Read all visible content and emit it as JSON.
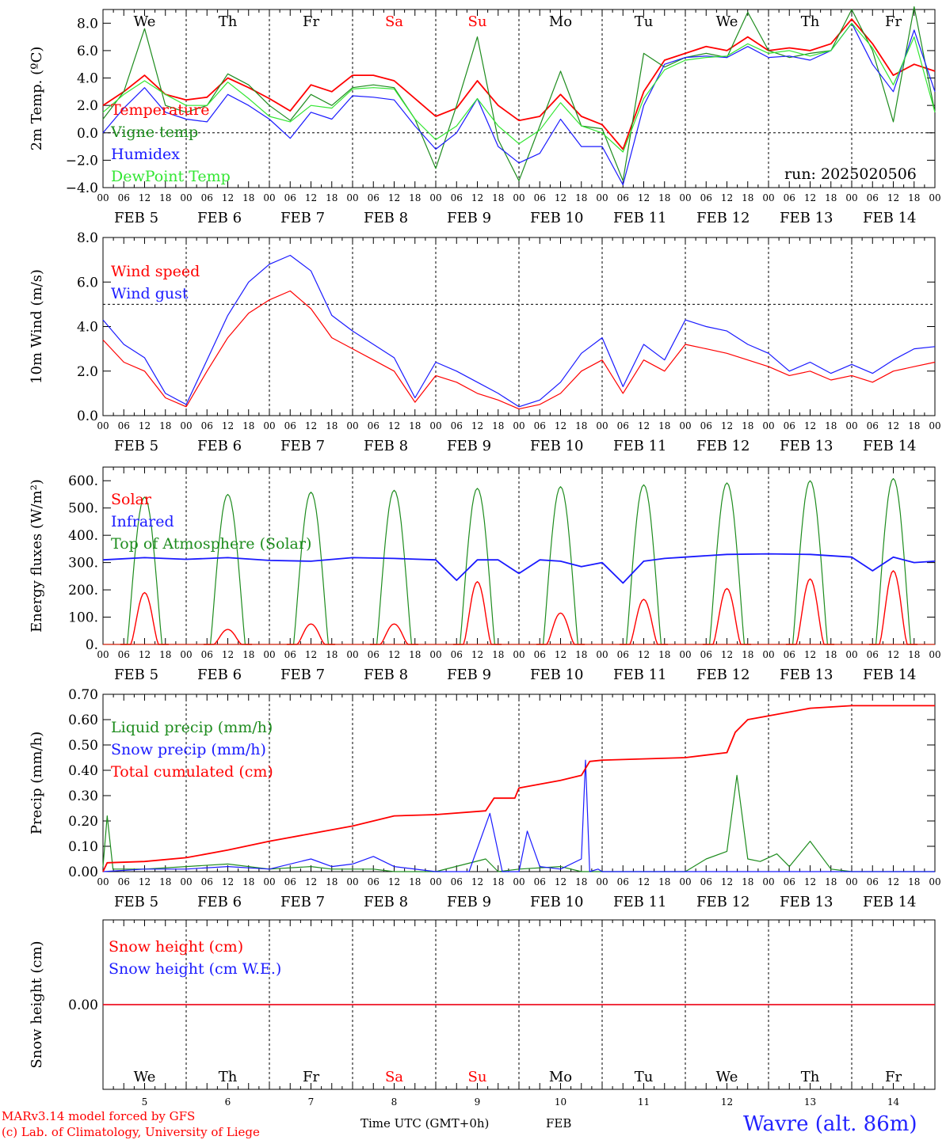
{
  "colors": {
    "red": "#ff0000",
    "dark_green": "#1e8c1e",
    "blue": "#1a1aff",
    "light_green": "#33e633",
    "axis": "#000000",
    "location": "#2222ff"
  },
  "x_axis": {
    "hour_labels": [
      "00",
      "06",
      "12",
      "18"
    ],
    "final_hour_label": "00",
    "date_labels": [
      "FEB  5",
      "FEB  6",
      "FEB  7",
      "FEB  8",
      "FEB  9",
      "FEB 10",
      "FEB 11",
      "FEB 12",
      "FEB 13",
      "FEB 14"
    ],
    "weekday_labels": [
      "We",
      "Th",
      "Fr",
      "Sa",
      "Su",
      "Mo",
      "Tu",
      "We",
      "Th",
      "Fr"
    ],
    "weekend_indices": [
      3,
      4
    ],
    "day_numbers": [
      "5",
      "6",
      "7",
      "8",
      "9",
      "10",
      "11",
      "12",
      "13",
      "14"
    ],
    "title": "Time UTC (GMT+0h)",
    "month": "FEB"
  },
  "run_label": "run: 2025020506",
  "footer": {
    "model": "MARv3.14 model forced by GFS",
    "copyright": "(c) Lab. of Climatology, University of Liege",
    "location": "Wavre (alt. 86m)"
  },
  "chart_data": [
    {
      "id": "temperature",
      "type": "line",
      "ylabel": "2m Temp. (ºC)",
      "ylim": [
        -4,
        9
      ],
      "yticks": [
        8,
        6,
        4,
        2,
        0,
        -2,
        -4
      ],
      "ytick_labels": [
        "8.0",
        "6.0",
        "4.0",
        "2.0",
        "0.0",
        "−2.0",
        "−4.0"
      ],
      "reference_line": 0,
      "x_days": [
        0,
        0.25,
        0.5,
        0.75,
        1,
        1.25,
        1.5,
        1.75,
        2,
        2.25,
        2.5,
        2.75,
        3,
        3.25,
        3.5,
        3.75,
        4,
        4.25,
        4.5,
        4.75,
        5,
        5.25,
        5.5,
        5.75,
        6,
        6.25,
        6.5,
        6.75,
        7,
        7.25,
        7.5,
        7.75,
        8,
        8.25,
        8.5,
        8.75,
        9,
        9.25,
        9.5,
        9.75,
        10
      ],
      "series": [
        {
          "name": "Temperature",
          "color": "#ff0000",
          "values": [
            2.0,
            3.0,
            4.2,
            2.8,
            2.4,
            2.6,
            4.0,
            3.3,
            2.5,
            1.6,
            3.5,
            3.0,
            4.2,
            4.2,
            3.8,
            2.5,
            1.2,
            1.8,
            3.8,
            2.0,
            0.9,
            1.2,
            2.8,
            1.2,
            0.6,
            -1.2,
            3.0,
            5.3,
            5.8,
            6.3,
            6.0,
            7.0,
            6.0,
            6.2,
            6.0,
            6.5,
            8.3,
            6.5,
            4.2,
            5.0,
            4.5
          ]
        },
        {
          "name": "Vigne temp",
          "color": "#1e8c1e",
          "values": [
            1.0,
            3.0,
            7.6,
            2.0,
            1.5,
            2.0,
            4.3,
            3.5,
            2.0,
            0.9,
            2.8,
            2.0,
            3.3,
            3.5,
            3.3,
            1.0,
            -2.6,
            2.0,
            7.0,
            -0.5,
            -3.5,
            0.5,
            4.5,
            0.5,
            0.3,
            -3.5,
            5.8,
            4.8,
            5.5,
            5.8,
            5.5,
            8.8,
            6.0,
            5.5,
            5.8,
            6.0,
            9.0,
            6.0,
            0.8,
            9.2,
            1.5
          ]
        },
        {
          "name": "Humidex",
          "color": "#1a1aff",
          "values": [
            0.0,
            1.8,
            3.3,
            1.5,
            1.0,
            0.8,
            2.8,
            2.0,
            1.0,
            -0.4,
            1.5,
            1.0,
            2.7,
            2.6,
            2.4,
            0.5,
            -1.2,
            0.0,
            2.5,
            -1.0,
            -2.2,
            -1.5,
            1.0,
            -1.0,
            -1.0,
            -3.8,
            2.0,
            5.0,
            5.5,
            5.6,
            5.5,
            6.3,
            5.5,
            5.6,
            5.3,
            6.0,
            8.0,
            5.0,
            3.0,
            7.5,
            3.0
          ]
        },
        {
          "name": "DewPoint Temp",
          "color": "#33e633",
          "values": [
            1.5,
            2.8,
            3.8,
            2.8,
            2.0,
            2.0,
            3.7,
            2.5,
            1.2,
            0.8,
            2.0,
            1.8,
            3.2,
            3.3,
            3.2,
            1.0,
            -0.5,
            0.5,
            2.5,
            0.5,
            -0.8,
            0.2,
            2.2,
            0.5,
            0.0,
            -1.4,
            2.5,
            4.6,
            5.3,
            5.5,
            5.6,
            6.5,
            5.8,
            6.0,
            5.6,
            6.0,
            8.0,
            6.2,
            3.5,
            7.0,
            1.5
          ]
        }
      ]
    },
    {
      "id": "wind",
      "type": "line",
      "ylabel": "10m Wind (m/s)",
      "ylim": [
        0,
        8
      ],
      "yticks": [
        8,
        6,
        4,
        2,
        0
      ],
      "ytick_labels": [
        "8.0",
        "6.0",
        "4.0",
        "2.0",
        "0.0"
      ],
      "reference_line": 5,
      "x_days": [
        0,
        0.25,
        0.5,
        0.75,
        1,
        1.25,
        1.5,
        1.75,
        2,
        2.25,
        2.5,
        2.75,
        3,
        3.25,
        3.5,
        3.75,
        4,
        4.25,
        4.5,
        4.75,
        5,
        5.25,
        5.5,
        5.75,
        6,
        6.25,
        6.5,
        6.75,
        7,
        7.25,
        7.5,
        7.75,
        8,
        8.25,
        8.5,
        8.75,
        9,
        9.25,
        9.5,
        9.75,
        10
      ],
      "series": [
        {
          "name": "Wind speed",
          "color": "#ff0000",
          "values": [
            3.4,
            2.4,
            2.0,
            0.8,
            0.4,
            2.0,
            3.5,
            4.6,
            5.2,
            5.6,
            4.8,
            3.5,
            3.0,
            2.5,
            2.0,
            0.6,
            1.8,
            1.5,
            1.0,
            0.7,
            0.3,
            0.5,
            1.0,
            2.0,
            2.5,
            1.0,
            2.5,
            2.0,
            3.2,
            3.0,
            2.8,
            2.5,
            2.2,
            1.8,
            2.0,
            1.6,
            1.8,
            1.5,
            2.0,
            2.2,
            2.4
          ]
        },
        {
          "name": "Wind gust",
          "color": "#1a1aff",
          "values": [
            4.3,
            3.2,
            2.6,
            1.0,
            0.5,
            2.5,
            4.5,
            6.0,
            6.8,
            7.2,
            6.5,
            4.5,
            3.8,
            3.2,
            2.6,
            0.8,
            2.4,
            2.0,
            1.5,
            1.0,
            0.4,
            0.7,
            1.5,
            2.8,
            3.5,
            1.3,
            3.2,
            2.5,
            4.3,
            4.0,
            3.8,
            3.2,
            2.8,
            2.0,
            2.4,
            1.9,
            2.3,
            1.9,
            2.5,
            3.0,
            3.1
          ]
        }
      ]
    },
    {
      "id": "energy",
      "type": "line",
      "ylabel": "Energy fluxes (W/m²)",
      "ylim": [
        0,
        650
      ],
      "yticks": [
        600,
        500,
        400,
        300,
        200,
        100,
        0
      ],
      "ytick_labels": [
        "600.",
        "500.",
        "400.",
        "300.",
        "200.",
        "100.",
        "0."
      ],
      "series": [
        {
          "name": "Solar",
          "color": "#ff0000",
          "daily_peaks": [
            190,
            55,
            75,
            75,
            230,
            115,
            165,
            205,
            240,
            270
          ]
        },
        {
          "name": "Infrared",
          "color": "#1a1aff",
          "x_days": [
            0,
            0.5,
            1,
            1.5,
            2,
            2.5,
            3,
            3.5,
            4,
            4.25,
            4.5,
            4.75,
            5,
            5.25,
            5.5,
            5.75,
            6,
            6.25,
            6.5,
            6.75,
            7,
            7.5,
            8,
            8.5,
            9,
            9.25,
            9.5,
            9.75,
            10
          ],
          "values": [
            310,
            318,
            312,
            318,
            308,
            305,
            318,
            315,
            310,
            235,
            310,
            310,
            260,
            310,
            305,
            285,
            300,
            225,
            305,
            315,
            320,
            330,
            332,
            330,
            320,
            270,
            320,
            300,
            305
          ]
        },
        {
          "name": "Top of Atmosphere (Solar)",
          "color": "#1e8c1e",
          "daily_peaks": [
            540,
            550,
            558,
            565,
            572,
            578,
            585,
            592,
            600,
            608
          ]
        }
      ]
    },
    {
      "id": "precip",
      "type": "line",
      "ylabel": "Precip (mm/h)",
      "ylim": [
        0,
        0.7
      ],
      "yticks": [
        0.7,
        0.6,
        0.5,
        0.4,
        0.3,
        0.2,
        0.1,
        0.0
      ],
      "ytick_labels": [
        "0.70",
        "0.60",
        "0.50",
        "0.40",
        "0.30",
        "0.20",
        "0.10",
        "0.00"
      ],
      "series": [
        {
          "name": "Liquid precip (mm/h)",
          "color": "#1e8c1e",
          "x_days": [
            0,
            0.05,
            0.12,
            0.5,
            1.0,
            1.5,
            2.0,
            2.5,
            2.75,
            3.0,
            3.25,
            3.5,
            4.0,
            4.6,
            4.75,
            5.0,
            5.5,
            5.75,
            6.0,
            7.0,
            7.25,
            7.5,
            7.62,
            7.75,
            7.9,
            8.1,
            8.25,
            8.5,
            8.75,
            9.0,
            10.0
          ],
          "values": [
            0.02,
            0.22,
            0.01,
            0.01,
            0.02,
            0.03,
            0.01,
            0.02,
            0.01,
            0.01,
            0.01,
            0.0,
            0.0,
            0.05,
            0.0,
            0.01,
            0.02,
            0.0,
            0.0,
            0.0,
            0.05,
            0.08,
            0.38,
            0.05,
            0.04,
            0.07,
            0.02,
            0.12,
            0.01,
            0.0,
            0.0
          ]
        },
        {
          "name": "Snow precip (mm/h)",
          "color": "#1a1aff",
          "x_days": [
            0,
            0.5,
            1.0,
            1.5,
            2.0,
            2.5,
            2.75,
            3.0,
            3.25,
            3.5,
            4.0,
            4.4,
            4.65,
            4.8,
            5.0,
            5.1,
            5.25,
            5.5,
            5.75,
            5.8,
            5.85,
            5.95,
            6.0,
            7.0,
            10.0
          ],
          "values": [
            0.0,
            0.01,
            0.01,
            0.02,
            0.01,
            0.05,
            0.02,
            0.03,
            0.06,
            0.02,
            0.0,
            0.0,
            0.23,
            0.0,
            0.0,
            0.16,
            0.02,
            0.01,
            0.05,
            0.44,
            0.0,
            0.01,
            0.0,
            0.0,
            0.0
          ]
        },
        {
          "name": "Total cumulated (cm)",
          "color": "#ff0000",
          "x_days": [
            0,
            0.05,
            0.5,
            1.0,
            1.5,
            2.0,
            2.5,
            3.0,
            3.5,
            4.0,
            4.6,
            4.7,
            4.95,
            5.0,
            5.5,
            5.75,
            5.85,
            6.0,
            7.0,
            7.5,
            7.6,
            7.75,
            8.0,
            8.5,
            9.0,
            10.0
          ],
          "values": [
            0.0,
            0.035,
            0.04,
            0.055,
            0.085,
            0.12,
            0.15,
            0.18,
            0.22,
            0.225,
            0.24,
            0.29,
            0.29,
            0.33,
            0.36,
            0.38,
            0.435,
            0.44,
            0.45,
            0.47,
            0.55,
            0.6,
            0.615,
            0.645,
            0.655,
            0.655
          ]
        }
      ]
    },
    {
      "id": "snow",
      "type": "line",
      "ylabel": "Snow height (cm)",
      "ylim": [
        -1,
        1
      ],
      "yticks": [
        0
      ],
      "ytick_labels": [
        "0.00"
      ],
      "series": [
        {
          "name": "Snow height (cm)",
          "color": "#ff0000",
          "values": [
            0,
            0
          ]
        },
        {
          "name": "Snow height (cm W.E.)",
          "color": "#1a1aff",
          "values": [
            0,
            0
          ]
        }
      ]
    }
  ]
}
